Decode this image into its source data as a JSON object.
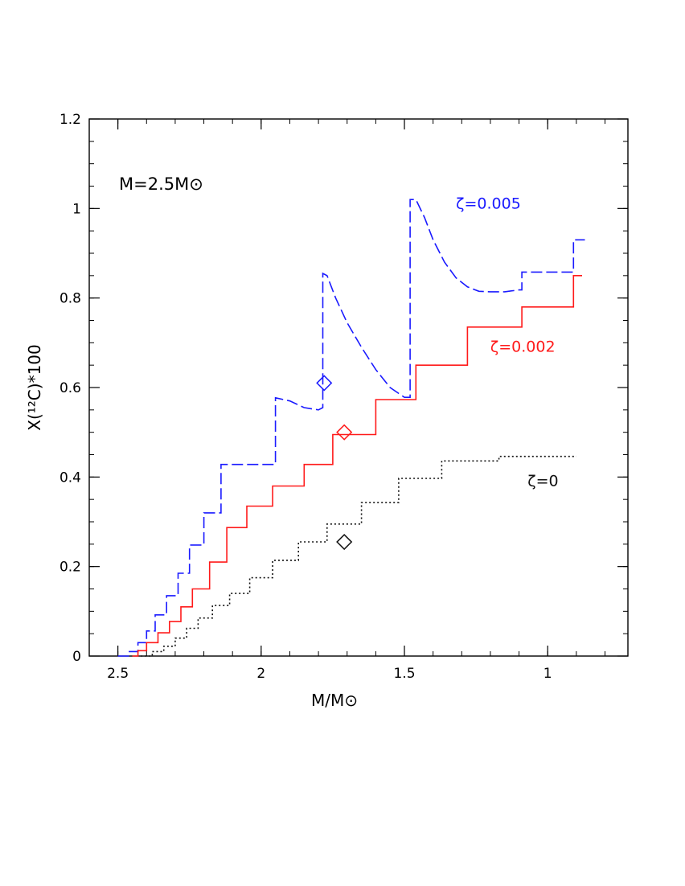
{
  "chart_data": {
    "type": "line",
    "title": "",
    "annotation": "M=2.5M⊙",
    "xlabel": "M/M⊙",
    "ylabel": "X(¹²C)*100",
    "xlim": [
      2.6,
      0.72
    ],
    "ylim": [
      0,
      1.2
    ],
    "x_reversed": true,
    "x_ticks": [
      "2.5",
      "2",
      "1.5",
      "1"
    ],
    "x_tick_values": [
      2.5,
      2.0,
      1.5,
      1.0
    ],
    "y_ticks": [
      "0",
      "0.2",
      "0.4",
      "0.6",
      "0.8",
      "1",
      "1.2"
    ],
    "y_tick_values": [
      0,
      0.2,
      0.4,
      0.6,
      0.8,
      1.0,
      1.2
    ],
    "grid": false,
    "series": [
      {
        "name": "ζ=0.005",
        "color": "#1a1aff",
        "style": "solid-dashed",
        "x": [
          2.5,
          2.46,
          2.46,
          2.43,
          2.43,
          2.4,
          2.4,
          2.37,
          2.37,
          2.33,
          2.33,
          2.29,
          2.29,
          2.25,
          2.25,
          2.2,
          2.2,
          2.14,
          2.14,
          2.05,
          2.05,
          1.95,
          1.95,
          1.9,
          1.85,
          1.8,
          1.785,
          1.785,
          1.77,
          1.74,
          1.7,
          1.65,
          1.6,
          1.55,
          1.5,
          1.48,
          1.48,
          1.46,
          1.43,
          1.4,
          1.36,
          1.32,
          1.28,
          1.24,
          1.2,
          1.15,
          1.1,
          1.09,
          1.09,
          1.0,
          0.91,
          0.91,
          0.87
        ],
        "y": [
          0.0,
          0.0,
          0.01,
          0.01,
          0.03,
          0.03,
          0.056,
          0.056,
          0.092,
          0.092,
          0.135,
          0.135,
          0.185,
          0.185,
          0.248,
          0.248,
          0.32,
          0.32,
          0.428,
          0.428,
          0.428,
          0.428,
          0.577,
          0.57,
          0.555,
          0.55,
          0.555,
          0.855,
          0.85,
          0.8,
          0.745,
          0.69,
          0.64,
          0.6,
          0.578,
          0.578,
          1.02,
          1.02,
          0.98,
          0.93,
          0.88,
          0.845,
          0.825,
          0.815,
          0.814,
          0.814,
          0.818,
          0.818,
          0.858,
          0.858,
          0.858,
          0.93,
          0.93
        ]
      },
      {
        "name": "ζ=0.002",
        "color": "#ff1a1a",
        "style": "solid",
        "x": [
          2.45,
          2.43,
          2.43,
          2.4,
          2.4,
          2.36,
          2.36,
          2.32,
          2.32,
          2.28,
          2.28,
          2.24,
          2.24,
          2.18,
          2.18,
          2.12,
          2.12,
          2.05,
          2.05,
          1.96,
          1.96,
          1.85,
          1.85,
          1.75,
          1.75,
          1.6,
          1.6,
          1.46,
          1.46,
          1.28,
          1.28,
          1.09,
          1.09,
          0.91,
          0.91,
          0.88
        ],
        "y": [
          0.0,
          0.0,
          0.012,
          0.012,
          0.03,
          0.03,
          0.052,
          0.052,
          0.077,
          0.077,
          0.11,
          0.11,
          0.15,
          0.15,
          0.21,
          0.21,
          0.287,
          0.287,
          0.335,
          0.335,
          0.38,
          0.38,
          0.428,
          0.428,
          0.495,
          0.495,
          0.573,
          0.573,
          0.65,
          0.65,
          0.735,
          0.735,
          0.78,
          0.78,
          0.85,
          0.85
        ]
      },
      {
        "name": "ζ=0",
        "color": "#111111",
        "style": "dotted",
        "x": [
          2.42,
          2.38,
          2.38,
          2.34,
          2.34,
          2.3,
          2.3,
          2.26,
          2.26,
          2.22,
          2.22,
          2.17,
          2.17,
          2.11,
          2.11,
          2.04,
          2.04,
          1.96,
          1.96,
          1.87,
          1.87,
          1.77,
          1.77,
          1.65,
          1.65,
          1.52,
          1.52,
          1.37,
          1.37,
          1.17,
          1.17,
          1.0,
          1.0,
          0.9
        ],
        "y": [
          0.0,
          0.0,
          0.01,
          0.01,
          0.022,
          0.022,
          0.04,
          0.04,
          0.062,
          0.062,
          0.085,
          0.085,
          0.113,
          0.113,
          0.14,
          0.14,
          0.175,
          0.175,
          0.214,
          0.214,
          0.255,
          0.255,
          0.295,
          0.295,
          0.343,
          0.343,
          0.397,
          0.397,
          0.436,
          0.436,
          0.446,
          0.446,
          0.446,
          0.446
        ]
      }
    ],
    "markers": [
      {
        "series": "ζ=0.005",
        "x": 1.78,
        "y": 0.61,
        "shape": "diamond",
        "color": "#1a1aff"
      },
      {
        "series": "ζ=0.002",
        "x": 1.71,
        "y": 0.5,
        "shape": "diamond",
        "color": "#ff1a1a"
      },
      {
        "series": "ζ=0",
        "x": 1.71,
        "y": 0.255,
        "shape": "diamond",
        "color": "#111111"
      }
    ],
    "labels": [
      {
        "text": "ζ=0.005",
        "x": 1.32,
        "y": 1.0,
        "color": "#1a1aff"
      },
      {
        "text": "ζ=0.002",
        "x": 1.2,
        "y": 0.68,
        "color": "#ff1a1a"
      },
      {
        "text": "ζ=0",
        "x": 1.07,
        "y": 0.38,
        "color": "#111111"
      }
    ]
  }
}
